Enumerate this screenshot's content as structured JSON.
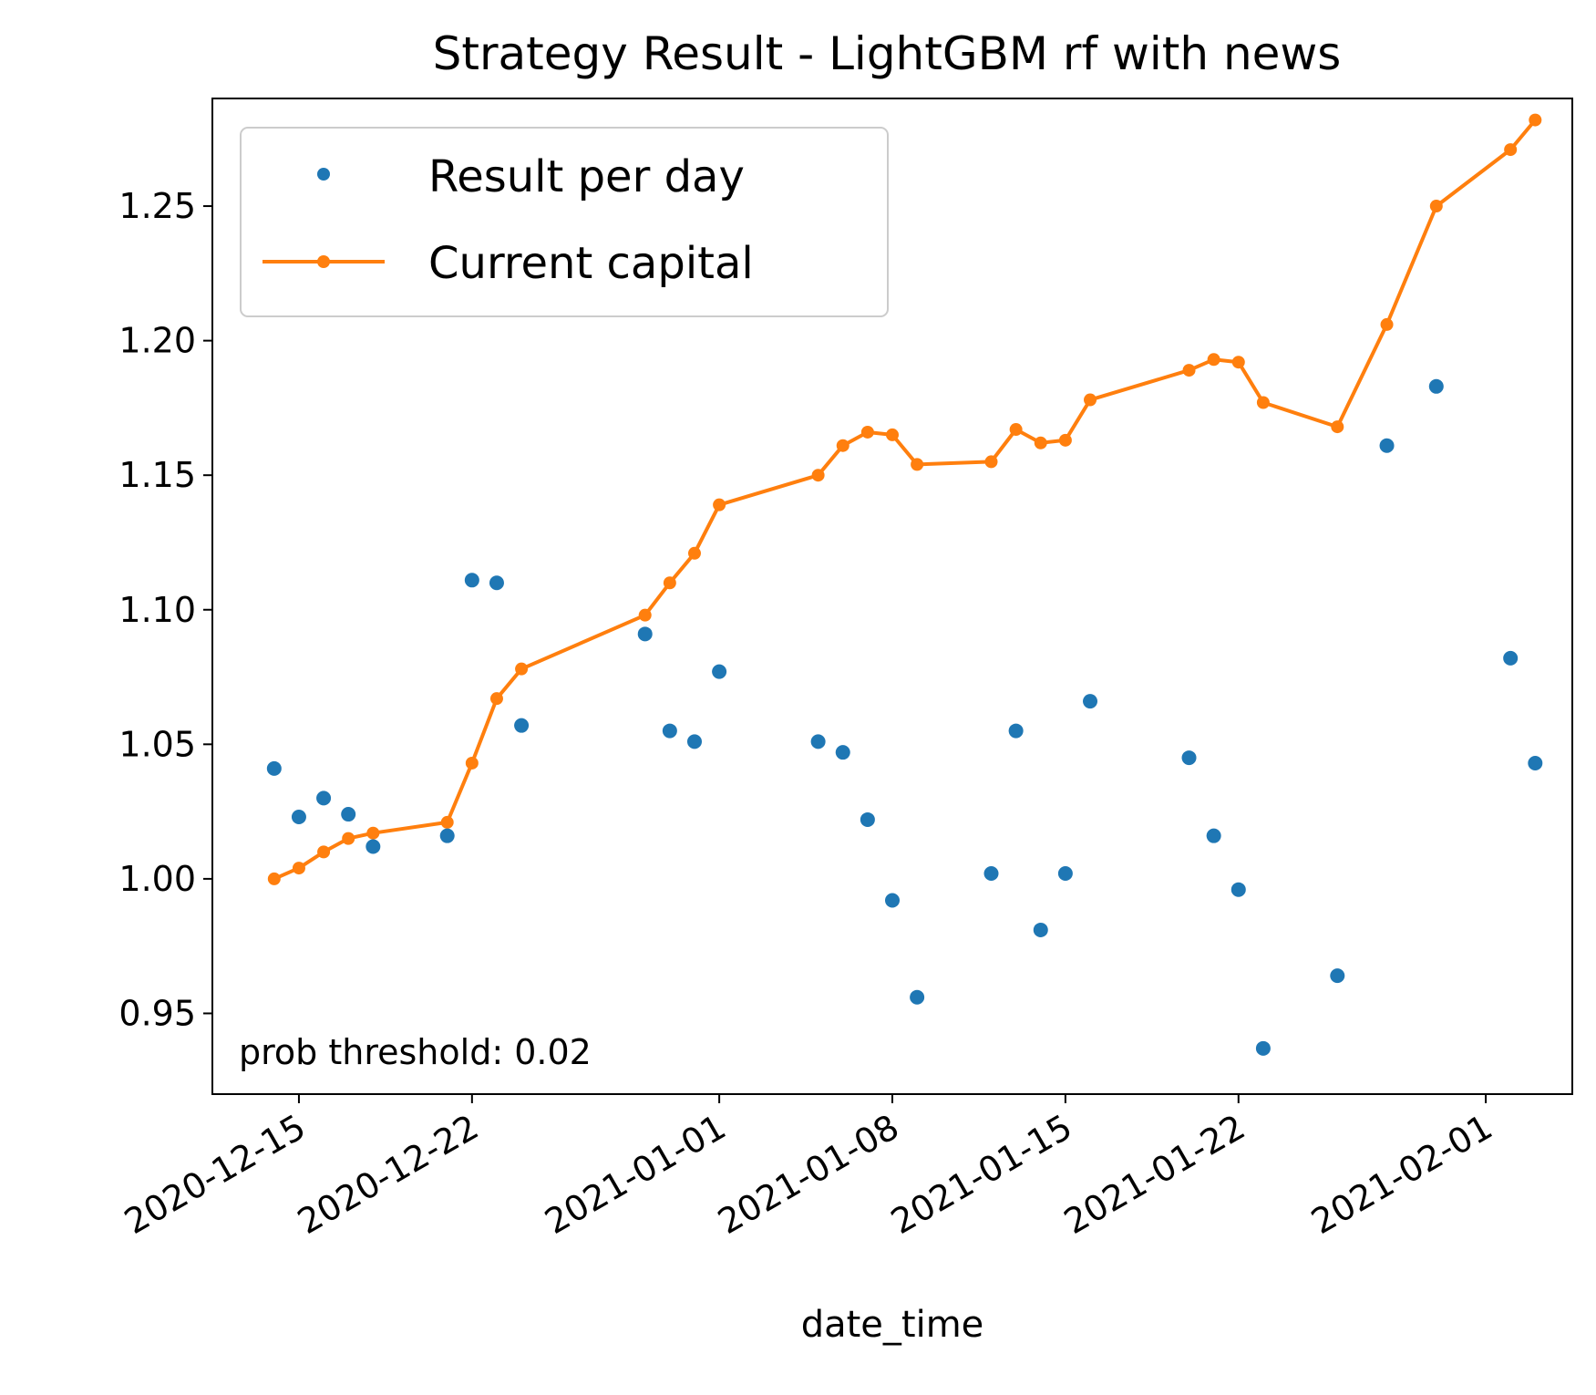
{
  "chart_data": {
    "type": "scatter+line",
    "title": "Strategy Result - LightGBM rf with news",
    "xlabel": "date_time",
    "ylabel": "",
    "xlim": [
      "2020-12-11T12:00",
      "2021-02-04T12:00"
    ],
    "ylim": [
      0.92,
      1.29
    ],
    "x_ticks": [
      "2020-12-15",
      "2020-12-22",
      "2021-01-01",
      "2021-01-08",
      "2021-01-15",
      "2021-01-22",
      "2021-02-01"
    ],
    "y_ticks": [
      "0.95",
      "1.00",
      "1.05",
      "1.10",
      "1.15",
      "1.20",
      "1.25"
    ],
    "legend_position": "upper-left",
    "grid": false,
    "annotation": "prob threshold: 0.02",
    "series": [
      {
        "name": "Result per day",
        "style": "markers",
        "color": "#1f77b4",
        "points": [
          [
            "2020-12-14",
            1.041
          ],
          [
            "2020-12-15",
            1.023
          ],
          [
            "2020-12-16",
            1.03
          ],
          [
            "2020-12-17",
            1.024
          ],
          [
            "2020-12-18",
            1.012
          ],
          [
            "2020-12-21",
            1.016
          ],
          [
            "2020-12-22",
            1.111
          ],
          [
            "2020-12-23",
            1.11
          ],
          [
            "2020-12-24",
            1.057
          ],
          [
            "2020-12-29",
            1.091
          ],
          [
            "2020-12-30",
            1.055
          ],
          [
            "2020-12-31",
            1.051
          ],
          [
            "2021-01-01",
            1.077
          ],
          [
            "2021-01-05",
            1.051
          ],
          [
            "2021-01-06",
            1.047
          ],
          [
            "2021-01-07",
            1.022
          ],
          [
            "2021-01-08",
            0.992
          ],
          [
            "2021-01-09",
            0.956
          ],
          [
            "2021-01-12",
            1.002
          ],
          [
            "2021-01-13",
            1.055
          ],
          [
            "2021-01-14",
            0.981
          ],
          [
            "2021-01-15",
            1.002
          ],
          [
            "2021-01-16",
            1.066
          ],
          [
            "2021-01-20",
            1.045
          ],
          [
            "2021-01-21",
            1.016
          ],
          [
            "2021-01-22",
            0.996
          ],
          [
            "2021-01-23",
            0.937
          ],
          [
            "2021-01-26",
            0.964
          ],
          [
            "2021-01-28",
            1.161
          ],
          [
            "2021-01-30",
            1.183
          ],
          [
            "2021-02-02",
            1.082
          ],
          [
            "2021-02-03",
            1.043
          ]
        ]
      },
      {
        "name": "Current capital",
        "style": "line+markers",
        "color": "#ff7f0e",
        "points": [
          [
            "2020-12-14",
            1.0
          ],
          [
            "2020-12-15",
            1.004
          ],
          [
            "2020-12-16",
            1.01
          ],
          [
            "2020-12-17",
            1.015
          ],
          [
            "2020-12-18",
            1.017
          ],
          [
            "2020-12-21",
            1.021
          ],
          [
            "2020-12-22",
            1.043
          ],
          [
            "2020-12-23",
            1.067
          ],
          [
            "2020-12-24",
            1.078
          ],
          [
            "2020-12-29",
            1.098
          ],
          [
            "2020-12-30",
            1.11
          ],
          [
            "2020-12-31",
            1.121
          ],
          [
            "2021-01-01",
            1.139
          ],
          [
            "2021-01-05",
            1.15
          ],
          [
            "2021-01-06",
            1.161
          ],
          [
            "2021-01-07",
            1.166
          ],
          [
            "2021-01-08",
            1.165
          ],
          [
            "2021-01-09",
            1.154
          ],
          [
            "2021-01-12",
            1.155
          ],
          [
            "2021-01-13",
            1.167
          ],
          [
            "2021-01-14",
            1.162
          ],
          [
            "2021-01-15",
            1.163
          ],
          [
            "2021-01-16",
            1.178
          ],
          [
            "2021-01-20",
            1.189
          ],
          [
            "2021-01-21",
            1.193
          ],
          [
            "2021-01-22",
            1.192
          ],
          [
            "2021-01-23",
            1.177
          ],
          [
            "2021-01-26",
            1.168
          ],
          [
            "2021-01-28",
            1.206
          ],
          [
            "2021-01-30",
            1.25
          ],
          [
            "2021-02-02",
            1.271
          ],
          [
            "2021-02-03",
            1.282
          ]
        ]
      }
    ]
  }
}
